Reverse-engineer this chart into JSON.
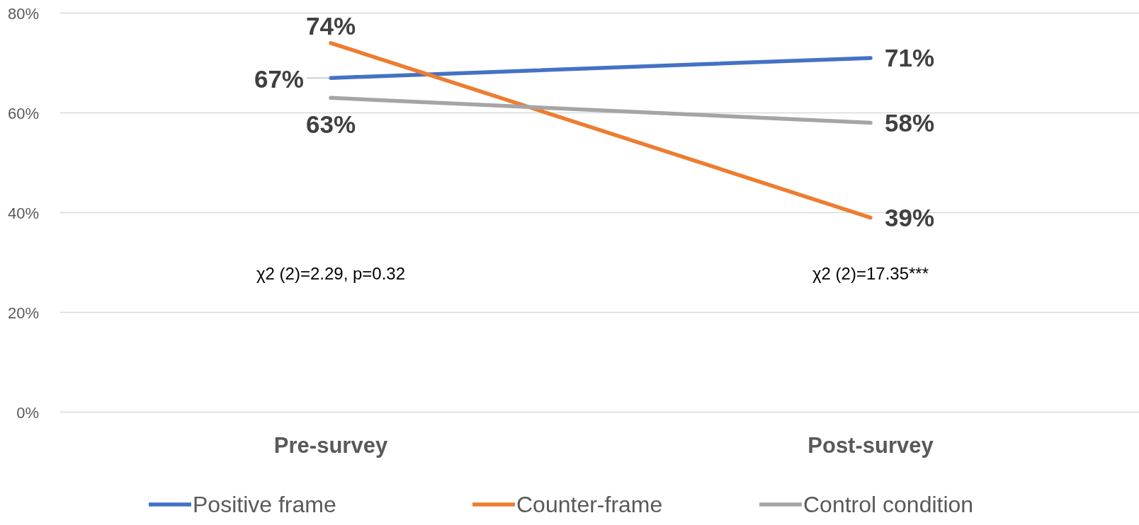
{
  "chart_data": {
    "type": "line",
    "categories": [
      "Pre-survey",
      "Post-survey"
    ],
    "series": [
      {
        "name": "Positive frame",
        "color": "#4472c4",
        "values": [
          67,
          71
        ],
        "value_labels": [
          "67%",
          "71%"
        ]
      },
      {
        "name": "Counter-frame",
        "color": "#ed7d31",
        "values": [
          74,
          39
        ],
        "value_labels": [
          "74%",
          "39%"
        ]
      },
      {
        "name": "Control condition",
        "color": "#a5a5a5",
        "values": [
          63,
          58
        ],
        "value_labels": [
          "63%",
          "58%"
        ]
      }
    ],
    "ylim": [
      0,
      80
    ],
    "yticks": [
      {
        "value": 0,
        "label": "0%"
      },
      {
        "value": 20,
        "label": "20%"
      },
      {
        "value": 40,
        "label": "40%"
      },
      {
        "value": 60,
        "label": "60%"
      },
      {
        "value": 80,
        "label": "80%"
      }
    ],
    "grid": "y",
    "legend": "bottom",
    "marker": "none",
    "line_style": "solid",
    "annotations": [
      "χ2 (2)=2.29, p=0.32",
      "χ2 (2)=17.35***"
    ]
  }
}
